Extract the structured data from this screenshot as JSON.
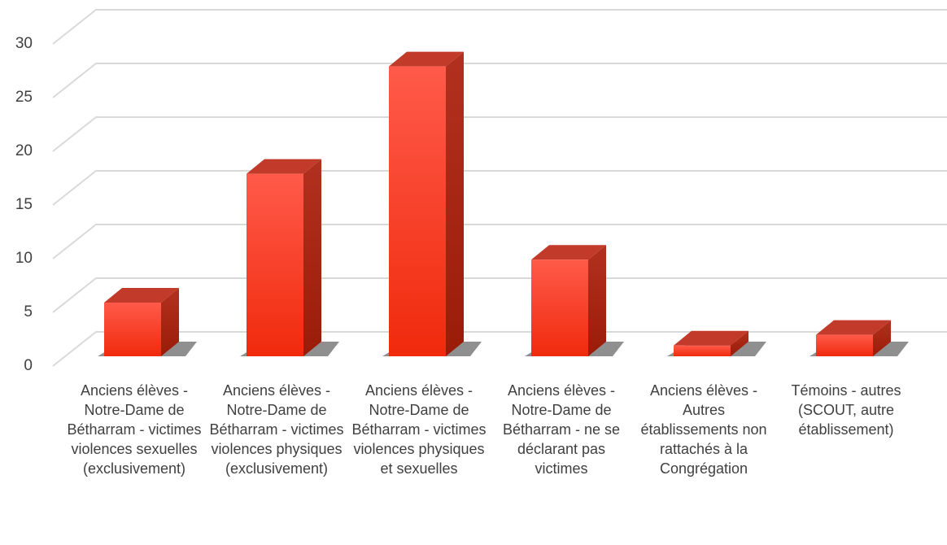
{
  "chart_data": {
    "type": "bar3d",
    "categories": [
      "Anciens élèves - Notre-Dame de Bétharram - victimes violences sexuelles (exclusivement)",
      "Anciens élèves - Notre-Dame de Bétharram - victimes violences physiques (exclusivement)",
      "Anciens élèves - Notre-Dame de Bétharram - victimes violences physiques et sexuelles",
      "Anciens élèves - Notre-Dame de Bétharram - ne se déclarant pas victimes",
      "Anciens élèves - Autres établissements non rattachés à la Congrégation",
      "Témoins - autres (SCOUT, autre établissement)"
    ],
    "values": [
      5,
      17,
      27,
      9,
      1,
      2
    ],
    "color": "#f0341a",
    "ylim": [
      0,
      30
    ],
    "yticks": [
      0,
      5,
      10,
      15,
      20,
      25,
      30
    ],
    "grid": true
  }
}
